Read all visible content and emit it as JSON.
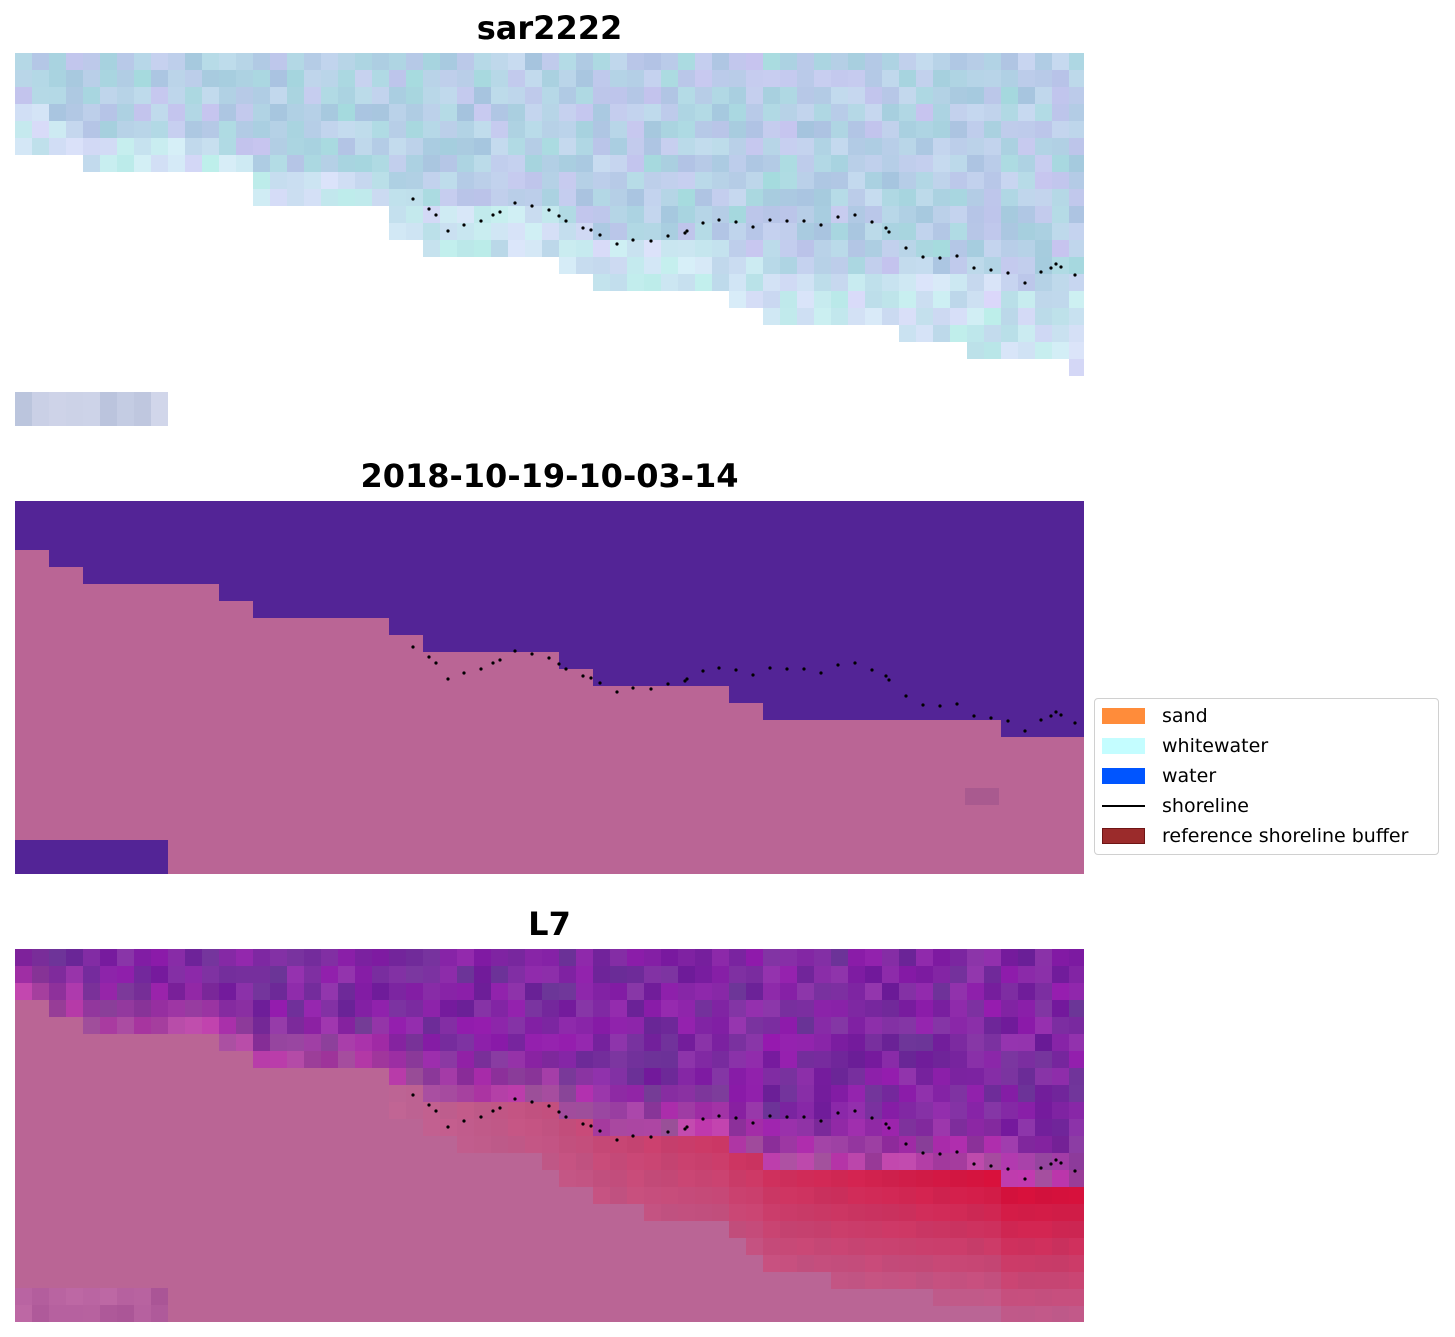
{
  "panels": [
    {
      "id": "sar",
      "title": "sar2222"
    },
    {
      "id": "class",
      "title": "2018-10-19-10-03-14"
    },
    {
      "id": "l7",
      "title": "L7"
    }
  ],
  "legend": {
    "placement": "right",
    "items": [
      {
        "label": "sand",
        "kind": "patch",
        "color": "#ff8c3a"
      },
      {
        "label": "whitewater",
        "kind": "patch",
        "color": "#c4fdff"
      },
      {
        "label": "water",
        "kind": "patch",
        "color": "#0055ff"
      },
      {
        "label": "shoreline",
        "kind": "line",
        "color": "#000000"
      },
      {
        "label": "reference shoreline buffer",
        "kind": "patch",
        "color": "#9b2b2b"
      }
    ]
  },
  "colors": {
    "sar_ocean": "#a9c6e1",
    "sar_beach": "#ffffff",
    "classified_water": "#532496",
    "classified_land": "#ba6595",
    "l7_water": "#6f1e9c",
    "l7_land": "#ba6595",
    "l7_wet_sand": "#c8124a",
    "shoreline_points": "#000000"
  }
}
